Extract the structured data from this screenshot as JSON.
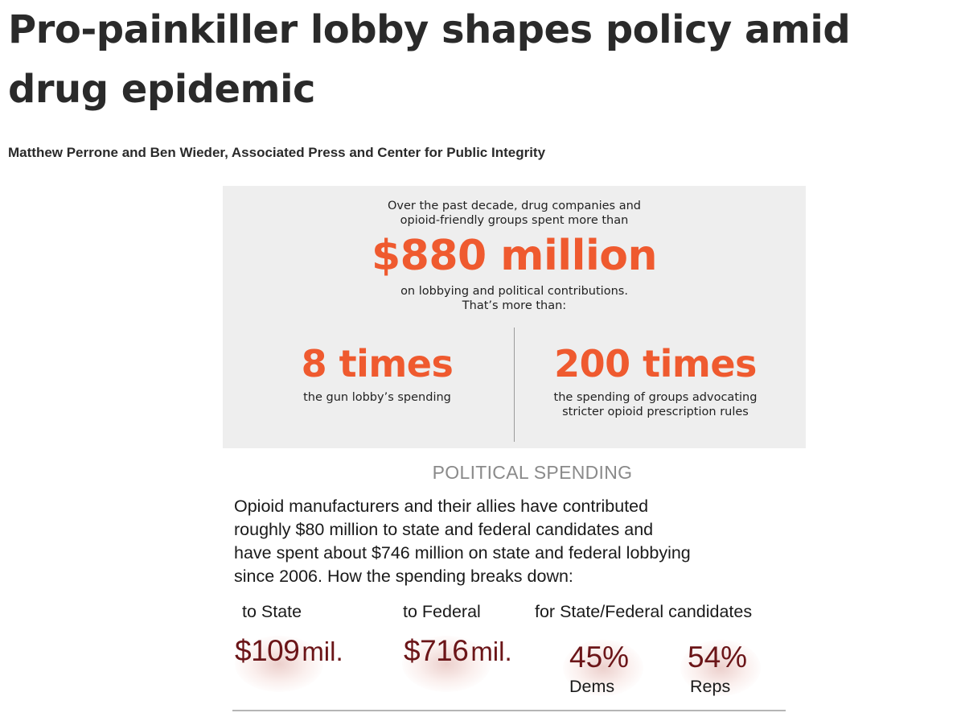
{
  "article": {
    "headline": "Pro-painkiller lobby shapes policy amid drug epidemic",
    "byline": "Matthew Perrone and Ben Wieder, Associated Press and Center for Public Integrity"
  },
  "graphic": {
    "intro_lines": [
      "Over the past decade, drug companies and",
      "opioid-friendly groups spent more than"
    ],
    "big_amount": "$880 million",
    "after_lines": [
      "on lobbying and political contributions.",
      "That’s more than:"
    ],
    "comparisons": [
      {
        "times": "8 times",
        "desc_lines": [
          "the gun lobby’s spending"
        ]
      },
      {
        "times": "200 times",
        "desc_lines": [
          "the spending of groups advocating",
          "stricter opioid prescription rules"
        ]
      }
    ],
    "accent_color": "#ef5a2f",
    "panel_color": "#eeeeee"
  },
  "political_spending": {
    "heading": "POLITICAL SPENDING",
    "body_lines": [
      "Opioid manufacturers and their allies have contributed",
      "roughly $80 million to state and federal candidates and",
      "have spent about $746 million on state and federal lobbying",
      "since 2006. How the spending breaks down:"
    ],
    "labels": {
      "state": "to State",
      "federal": "to Federal",
      "candidates": "for State/Federal candidates"
    },
    "state_amount": {
      "num": "$109",
      "unit": "mil."
    },
    "federal_amount": {
      "num": "$716",
      "unit": "mil."
    },
    "dems": {
      "pct": "45%",
      "label": "Dems"
    },
    "reps": {
      "pct": "54%",
      "label": "Reps"
    },
    "stat_color": "#6b1518"
  }
}
